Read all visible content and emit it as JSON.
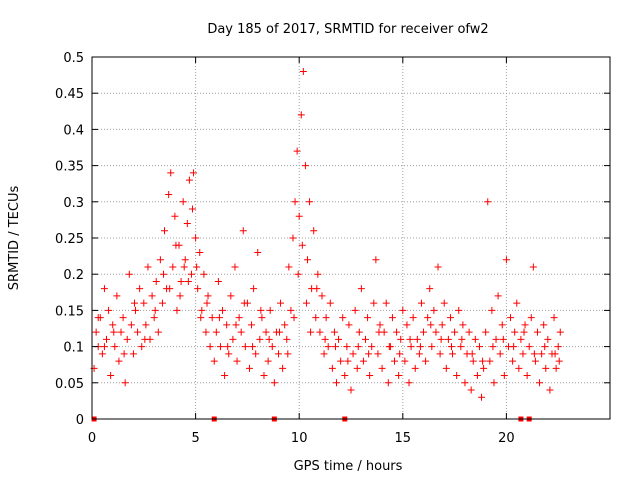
{
  "chart_data": {
    "type": "scatter",
    "title": "Day 185 of 2017, SRMTID for receiver ofw2",
    "xlabel": "GPS time / hours",
    "ylabel": "SRMTID / TECUs",
    "xlim": [
      0,
      25
    ],
    "ylim": [
      0,
      0.5
    ],
    "xticks": [
      0,
      5,
      10,
      15,
      20
    ],
    "xtick_labels": [
      "0",
      "5",
      "10",
      "15",
      "20"
    ],
    "yticks": [
      0,
      0.05,
      0.1,
      0.15,
      0.2,
      0.25,
      0.3,
      0.35,
      0.4,
      0.45,
      0.5
    ],
    "ytick_labels": [
      "0",
      "0.05",
      "0.1",
      "0.15",
      "0.2",
      "0.25",
      "0.3",
      "0.35",
      "0.4",
      "0.45",
      "0.5"
    ],
    "grid": true,
    "marker": "+",
    "color": "#ff0000",
    "gap_markers_x": [
      0.1,
      5.9,
      8.8,
      12.2,
      20.7,
      21.1
    ],
    "series": [
      {
        "name": "SRMTID",
        "points": [
          [
            0.1,
            0.07
          ],
          [
            0.2,
            0.12
          ],
          [
            0.3,
            0.1
          ],
          [
            0.4,
            0.14
          ],
          [
            0.5,
            0.09
          ],
          [
            0.6,
            0.18
          ],
          [
            0.7,
            0.11
          ],
          [
            0.8,
            0.15
          ],
          [
            0.9,
            0.06
          ],
          [
            1.0,
            0.13
          ],
          [
            1.1,
            0.1
          ],
          [
            1.2,
            0.17
          ],
          [
            1.3,
            0.08
          ],
          [
            1.4,
            0.12
          ],
          [
            1.5,
            0.14
          ],
          [
            1.6,
            0.05
          ],
          [
            1.7,
            0.11
          ],
          [
            1.8,
            0.2
          ],
          [
            1.9,
            0.13
          ],
          [
            2.0,
            0.09
          ],
          [
            2.1,
            0.15
          ],
          [
            2.2,
            0.12
          ],
          [
            2.3,
            0.18
          ],
          [
            2.4,
            0.1
          ],
          [
            2.5,
            0.16
          ],
          [
            2.6,
            0.13
          ],
          [
            2.7,
            0.21
          ],
          [
            2.8,
            0.11
          ],
          [
            2.9,
            0.17
          ],
          [
            3.0,
            0.14
          ],
          [
            3.1,
            0.19
          ],
          [
            3.2,
            0.12
          ],
          [
            3.3,
            0.22
          ],
          [
            3.4,
            0.16
          ],
          [
            3.5,
            0.26
          ],
          [
            3.6,
            0.18
          ],
          [
            3.7,
            0.31
          ],
          [
            3.8,
            0.34
          ],
          [
            3.9,
            0.21
          ],
          [
            4.0,
            0.28
          ],
          [
            4.1,
            0.15
          ],
          [
            4.2,
            0.24
          ],
          [
            4.3,
            0.19
          ],
          [
            4.4,
            0.3
          ],
          [
            4.5,
            0.22
          ],
          [
            4.6,
            0.27
          ],
          [
            4.7,
            0.33
          ],
          [
            4.8,
            0.2
          ],
          [
            4.9,
            0.34
          ],
          [
            5.0,
            0.25
          ],
          [
            5.1,
            0.18
          ],
          [
            5.2,
            0.23
          ],
          [
            5.3,
            0.15
          ],
          [
            5.4,
            0.2
          ],
          [
            5.5,
            0.12
          ],
          [
            5.6,
            0.17
          ],
          [
            5.7,
            0.1
          ],
          [
            5.8,
            0.14
          ],
          [
            5.9,
            0.08
          ],
          [
            6.0,
            0.12
          ],
          [
            6.1,
            0.19
          ],
          [
            6.2,
            0.1
          ],
          [
            6.3,
            0.15
          ],
          [
            6.4,
            0.06
          ],
          [
            6.5,
            0.13
          ],
          [
            6.6,
            0.09
          ],
          [
            6.7,
            0.17
          ],
          [
            6.8,
            0.11
          ],
          [
            6.9,
            0.21
          ],
          [
            7.0,
            0.08
          ],
          [
            7.1,
            0.14
          ],
          [
            7.2,
            0.12
          ],
          [
            7.3,
            0.26
          ],
          [
            7.4,
            0.1
          ],
          [
            7.5,
            0.16
          ],
          [
            7.6,
            0.07
          ],
          [
            7.7,
            0.13
          ],
          [
            7.8,
            0.18
          ],
          [
            7.9,
            0.09
          ],
          [
            8.0,
            0.23
          ],
          [
            8.1,
            0.11
          ],
          [
            8.2,
            0.14
          ],
          [
            8.3,
            0.06
          ],
          [
            8.4,
            0.12
          ],
          [
            8.5,
            0.08
          ],
          [
            8.6,
            0.15
          ],
          [
            8.7,
            0.1
          ],
          [
            8.8,
            0.05
          ],
          [
            8.9,
            0.12
          ],
          [
            9.0,
            0.09
          ],
          [
            9.1,
            0.16
          ],
          [
            9.2,
            0.07
          ],
          [
            9.3,
            0.13
          ],
          [
            9.4,
            0.11
          ],
          [
            9.5,
            0.21
          ],
          [
            9.6,
            0.15
          ],
          [
            9.7,
            0.25
          ],
          [
            9.8,
            0.3
          ],
          [
            9.9,
            0.37
          ],
          [
            10.0,
            0.28
          ],
          [
            10.1,
            0.42
          ],
          [
            10.2,
            0.48
          ],
          [
            10.3,
            0.35
          ],
          [
            10.4,
            0.22
          ],
          [
            10.5,
            0.3
          ],
          [
            10.6,
            0.18
          ],
          [
            10.7,
            0.26
          ],
          [
            10.8,
            0.14
          ],
          [
            10.9,
            0.2
          ],
          [
            11.0,
            0.12
          ],
          [
            11.1,
            0.17
          ],
          [
            11.2,
            0.09
          ],
          [
            11.3,
            0.14
          ],
          [
            11.4,
            0.1
          ],
          [
            11.5,
            0.16
          ],
          [
            11.6,
            0.07
          ],
          [
            11.7,
            0.12
          ],
          [
            11.8,
            0.05
          ],
          [
            11.9,
            0.11
          ],
          [
            12.0,
            0.08
          ],
          [
            12.1,
            0.14
          ],
          [
            12.2,
            0.06
          ],
          [
            12.3,
            0.1
          ],
          [
            12.4,
            0.13
          ],
          [
            12.5,
            0.04
          ],
          [
            12.6,
            0.09
          ],
          [
            12.7,
            0.15
          ],
          [
            12.8,
            0.07
          ],
          [
            12.9,
            0.12
          ],
          [
            13.0,
            0.18
          ],
          [
            13.1,
            0.08
          ],
          [
            13.2,
            0.11
          ],
          [
            13.3,
            0.14
          ],
          [
            13.4,
            0.06
          ],
          [
            13.5,
            0.1
          ],
          [
            13.6,
            0.16
          ],
          [
            13.7,
            0.22
          ],
          [
            13.8,
            0.09
          ],
          [
            13.9,
            0.13
          ],
          [
            14.0,
            0.07
          ],
          [
            14.1,
            0.12
          ],
          [
            14.2,
            0.16
          ],
          [
            14.3,
            0.05
          ],
          [
            14.4,
            0.1
          ],
          [
            14.5,
            0.14
          ],
          [
            14.6,
            0.08
          ],
          [
            14.7,
            0.12
          ],
          [
            14.8,
            0.06
          ],
          [
            14.9,
            0.11
          ],
          [
            15.0,
            0.15
          ],
          [
            15.1,
            0.08
          ],
          [
            15.2,
            0.13
          ],
          [
            15.3,
            0.05
          ],
          [
            15.4,
            0.1
          ],
          [
            15.5,
            0.14
          ],
          [
            15.6,
            0.07
          ],
          [
            15.7,
            0.11
          ],
          [
            15.8,
            0.09
          ],
          [
            15.9,
            0.16
          ],
          [
            16.0,
            0.12
          ],
          [
            16.1,
            0.08
          ],
          [
            16.2,
            0.14
          ],
          [
            16.3,
            0.18
          ],
          [
            16.4,
            0.1
          ],
          [
            16.5,
            0.15
          ],
          [
            16.6,
            0.12
          ],
          [
            16.7,
            0.21
          ],
          [
            16.8,
            0.09
          ],
          [
            16.9,
            0.13
          ],
          [
            17.0,
            0.16
          ],
          [
            17.1,
            0.07
          ],
          [
            17.2,
            0.11
          ],
          [
            17.3,
            0.14
          ],
          [
            17.4,
            0.09
          ],
          [
            17.5,
            0.12
          ],
          [
            17.6,
            0.06
          ],
          [
            17.7,
            0.15
          ],
          [
            17.8,
            0.1
          ],
          [
            17.9,
            0.13
          ],
          [
            18.0,
            0.05
          ],
          [
            18.1,
            0.09
          ],
          [
            18.2,
            0.12
          ],
          [
            18.3,
            0.04
          ],
          [
            18.4,
            0.08
          ],
          [
            18.5,
            0.11
          ],
          [
            18.6,
            0.06
          ],
          [
            18.7,
            0.1
          ],
          [
            18.8,
            0.03
          ],
          [
            18.9,
            0.07
          ],
          [
            19.0,
            0.12
          ],
          [
            19.1,
            0.3
          ],
          [
            19.2,
            0.08
          ],
          [
            19.3,
            0.15
          ],
          [
            19.4,
            0.05
          ],
          [
            19.5,
            0.11
          ],
          [
            19.6,
            0.17
          ],
          [
            19.7,
            0.09
          ],
          [
            19.8,
            0.13
          ],
          [
            19.9,
            0.06
          ],
          [
            20.0,
            0.22
          ],
          [
            20.1,
            0.1
          ],
          [
            20.2,
            0.14
          ],
          [
            20.3,
            0.08
          ],
          [
            20.4,
            0.12
          ],
          [
            20.5,
            0.16
          ],
          [
            20.6,
            0.07
          ],
          [
            20.7,
            0.11
          ],
          [
            20.8,
            0.09
          ],
          [
            20.9,
            0.13
          ],
          [
            21.0,
            0.06
          ],
          [
            21.1,
            0.1
          ],
          [
            21.2,
            0.14
          ],
          [
            21.3,
            0.21
          ],
          [
            21.4,
            0.08
          ],
          [
            21.5,
            0.12
          ],
          [
            21.6,
            0.05
          ],
          [
            21.7,
            0.09
          ],
          [
            21.8,
            0.13
          ],
          [
            21.9,
            0.07
          ],
          [
            22.0,
            0.11
          ],
          [
            22.1,
            0.04
          ],
          [
            22.2,
            0.09
          ],
          [
            22.3,
            0.14
          ],
          [
            22.4,
            0.07
          ],
          [
            22.5,
            0.1
          ],
          [
            22.6,
            0.12
          ],
          [
            0.3,
            0.14
          ],
          [
            0.6,
            0.1
          ],
          [
            1.05,
            0.12
          ],
          [
            1.55,
            0.09
          ],
          [
            2.05,
            0.16
          ],
          [
            2.55,
            0.11
          ],
          [
            3.05,
            0.15
          ],
          [
            3.45,
            0.2
          ],
          [
            3.75,
            0.18
          ],
          [
            4.05,
            0.24
          ],
          [
            4.25,
            0.17
          ],
          [
            4.45,
            0.21
          ],
          [
            4.65,
            0.19
          ],
          [
            4.85,
            0.29
          ],
          [
            5.05,
            0.21
          ],
          [
            5.25,
            0.14
          ],
          [
            5.55,
            0.16
          ],
          [
            6.15,
            0.14
          ],
          [
            6.55,
            0.1
          ],
          [
            6.95,
            0.13
          ],
          [
            7.35,
            0.16
          ],
          [
            7.75,
            0.1
          ],
          [
            8.15,
            0.15
          ],
          [
            8.55,
            0.11
          ],
          [
            9.05,
            0.12
          ],
          [
            9.45,
            0.09
          ],
          [
            9.75,
            0.14
          ],
          [
            9.95,
            0.2
          ],
          [
            10.15,
            0.24
          ],
          [
            10.35,
            0.16
          ],
          [
            10.55,
            0.12
          ],
          [
            10.85,
            0.18
          ],
          [
            11.25,
            0.11
          ],
          [
            11.75,
            0.1
          ],
          [
            12.35,
            0.08
          ],
          [
            12.85,
            0.1
          ],
          [
            13.35,
            0.09
          ],
          [
            13.85,
            0.12
          ],
          [
            14.35,
            0.1
          ],
          [
            14.85,
            0.09
          ],
          [
            15.35,
            0.11
          ],
          [
            15.85,
            0.1
          ],
          [
            16.35,
            0.13
          ],
          [
            16.85,
            0.11
          ],
          [
            17.35,
            0.1
          ],
          [
            17.85,
            0.11
          ],
          [
            18.35,
            0.09
          ],
          [
            18.85,
            0.08
          ],
          [
            19.35,
            0.1
          ],
          [
            19.85,
            0.11
          ],
          [
            20.35,
            0.1
          ],
          [
            20.85,
            0.12
          ],
          [
            21.35,
            0.09
          ],
          [
            21.85,
            0.1
          ],
          [
            22.35,
            0.09
          ],
          [
            22.55,
            0.08
          ]
        ]
      }
    ]
  }
}
